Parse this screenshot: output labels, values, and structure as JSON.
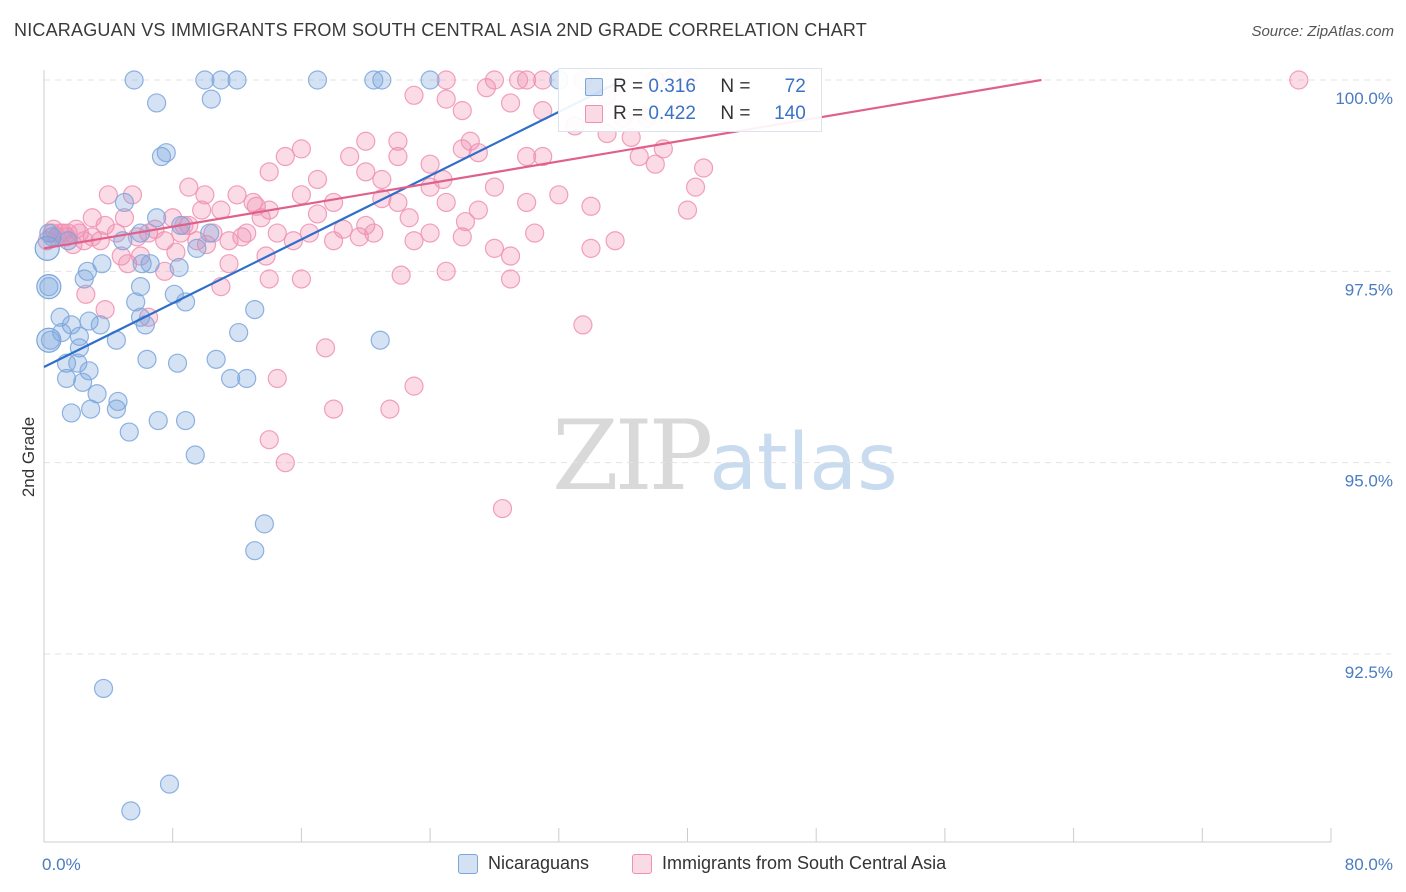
{
  "title": "NICARAGUAN VS IMMIGRANTS FROM SOUTH CENTRAL ASIA 2ND GRADE CORRELATION CHART",
  "source": "Source: ZipAtlas.com",
  "watermark": {
    "zip": "ZIP",
    "atlas": "atlas"
  },
  "stats": {
    "r_label": "R =",
    "n_label": "N =",
    "series1": {
      "r": "0.316",
      "n": "72",
      "color": "#7aa6dc"
    },
    "series2": {
      "r": "0.422",
      "n": "140",
      "color": "#f08fb0"
    }
  },
  "legend": {
    "series1": "Nicaraguans",
    "series2": "Immigrants from South Central Asia"
  },
  "chart_data": {
    "type": "scatter",
    "title": "NICARAGUAN VS IMMIGRANTS FROM SOUTH CENTRAL ASIA 2ND GRADE CORRELATION CHART",
    "xlabel": "",
    "ylabel": "2nd Grade",
    "xlim": [
      0,
      80
    ],
    "ylim": [
      89.8,
      100.7
    ],
    "x_tick_labels": [
      "0.0%",
      "80.0%"
    ],
    "y_ticks": [
      92.5,
      95.0,
      97.5,
      100.0
    ],
    "y_tick_labels": [
      "92.5%",
      "95.0%",
      "97.5%",
      "100.0%"
    ],
    "grid": true,
    "legend_position": "bottom",
    "series": [
      {
        "name": "Nicaraguans",
        "color": "#7aa6dc",
        "line_color": "#2f6fca",
        "trend": {
          "x": [
            0,
            36
          ],
          "y": [
            96.25,
            100.0
          ]
        },
        "points": [
          [
            5.6,
            100.0
          ],
          [
            10,
            100.0
          ],
          [
            11,
            100.0
          ],
          [
            12,
            100.0
          ],
          [
            17,
            100.0
          ],
          [
            21,
            100.0
          ],
          [
            24,
            100.0
          ],
          [
            32,
            100.0
          ],
          [
            7,
            99.7
          ],
          [
            10.4,
            99.75
          ],
          [
            7.3,
            99.0
          ],
          [
            7.6,
            99.05
          ],
          [
            5,
            98.4
          ],
          [
            7,
            98.2
          ],
          [
            8.5,
            98.1
          ],
          [
            6,
            98.0
          ],
          [
            4.9,
            97.9
          ],
          [
            9.5,
            97.8
          ],
          [
            10.3,
            98.0
          ],
          [
            0.3,
            98.0
          ],
          [
            1.5,
            97.9
          ],
          [
            0.5,
            97.95
          ],
          [
            2.7,
            97.5
          ],
          [
            3.6,
            97.6
          ],
          [
            6.1,
            97.6
          ],
          [
            6.6,
            97.6
          ],
          [
            8.4,
            97.55
          ],
          [
            0.3,
            97.3
          ],
          [
            2.5,
            97.4
          ],
          [
            6,
            97.3
          ],
          [
            8.1,
            97.2
          ],
          [
            5.7,
            97.1
          ],
          [
            8.8,
            97.1
          ],
          [
            13.1,
            97.0
          ],
          [
            1,
            96.9
          ],
          [
            2.8,
            96.85
          ],
          [
            6,
            96.9
          ],
          [
            1.7,
            96.8
          ],
          [
            3.5,
            96.8
          ],
          [
            6.3,
            96.8
          ],
          [
            12.1,
            96.7
          ],
          [
            1.1,
            96.7
          ],
          [
            2.2,
            96.65
          ],
          [
            4.5,
            96.6
          ],
          [
            2.2,
            96.5
          ],
          [
            20.9,
            96.6
          ],
          [
            0.4,
            96.6
          ],
          [
            1.4,
            96.3
          ],
          [
            2.1,
            96.3
          ],
          [
            6.4,
            96.35
          ],
          [
            8.3,
            96.3
          ],
          [
            10.7,
            96.35
          ],
          [
            2.8,
            96.2
          ],
          [
            1.4,
            96.1
          ],
          [
            2.4,
            96.05
          ],
          [
            11.6,
            96.1
          ],
          [
            12.6,
            96.1
          ],
          [
            3.3,
            95.9
          ],
          [
            4.6,
            95.8
          ],
          [
            2.9,
            95.7
          ],
          [
            4.5,
            95.7
          ],
          [
            1.7,
            95.65
          ],
          [
            7.1,
            95.55
          ],
          [
            8.8,
            95.55
          ],
          [
            5.3,
            95.4
          ],
          [
            9.4,
            95.1
          ],
          [
            13.7,
            94.2
          ],
          [
            13.1,
            93.85
          ],
          [
            3.7,
            92.05
          ],
          [
            7.8,
            90.8
          ],
          [
            5.4,
            90.45
          ],
          [
            20.5,
            100.0
          ]
        ]
      },
      {
        "name": "Immigrants from South Central Asia",
        "color": "#f08fb0",
        "line_color": "#e0608c",
        "trend": {
          "x": [
            0,
            62
          ],
          "y": [
            97.8,
            100.0
          ]
        },
        "points": [
          [
            25,
            100.0
          ],
          [
            28,
            100.0
          ],
          [
            29.5,
            100.0
          ],
          [
            30,
            100.0
          ],
          [
            31,
            100.0
          ],
          [
            33.5,
            100.0
          ],
          [
            38,
            100.0
          ],
          [
            39,
            100.0
          ],
          [
            40,
            100.0
          ],
          [
            78,
            100.0
          ],
          [
            27.5,
            99.9
          ],
          [
            23,
            99.8
          ],
          [
            25,
            99.75
          ],
          [
            29,
            99.7
          ],
          [
            26,
            99.6
          ],
          [
            31,
            99.6
          ],
          [
            36,
            99.5
          ],
          [
            39.5,
            99.6
          ],
          [
            33,
            99.4
          ],
          [
            35,
            99.3
          ],
          [
            20,
            99.2
          ],
          [
            22,
            99.2
          ],
          [
            26,
            99.1
          ],
          [
            16,
            99.1
          ],
          [
            27,
            99.05
          ],
          [
            15,
            99.0
          ],
          [
            19,
            99.0
          ],
          [
            22,
            99.0
          ],
          [
            24,
            98.9
          ],
          [
            30,
            99.0
          ],
          [
            37,
            99.0
          ],
          [
            38,
            98.9
          ],
          [
            41,
            98.85
          ],
          [
            14,
            98.8
          ],
          [
            17,
            98.7
          ],
          [
            21,
            98.7
          ],
          [
            24,
            98.6
          ],
          [
            28,
            98.6
          ],
          [
            9,
            98.6
          ],
          [
            10,
            98.5
          ],
          [
            12,
            98.5
          ],
          [
            4,
            98.5
          ],
          [
            5.5,
            98.5
          ],
          [
            16,
            98.5
          ],
          [
            13,
            98.4
          ],
          [
            18,
            98.4
          ],
          [
            22,
            98.4
          ],
          [
            25,
            98.4
          ],
          [
            30,
            98.4
          ],
          [
            34,
            98.35
          ],
          [
            3,
            98.2
          ],
          [
            5,
            98.2
          ],
          [
            8,
            98.2
          ],
          [
            11,
            98.3
          ],
          [
            14,
            98.3
          ],
          [
            17,
            98.25
          ],
          [
            40,
            98.3
          ],
          [
            0.5,
            98.0
          ],
          [
            1,
            98.0
          ],
          [
            1.5,
            98.0
          ],
          [
            2,
            98.05
          ],
          [
            0.8,
            97.95
          ],
          [
            1.2,
            98.0
          ],
          [
            2.5,
            97.9
          ],
          [
            3,
            97.95
          ],
          [
            3.5,
            97.9
          ],
          [
            4.5,
            98.0
          ],
          [
            5.8,
            97.95
          ],
          [
            6.5,
            98.0
          ],
          [
            7.5,
            97.9
          ],
          [
            8.5,
            98.0
          ],
          [
            9.5,
            97.9
          ],
          [
            11.5,
            97.9
          ],
          [
            12.3,
            97.95
          ],
          [
            14.5,
            98.0
          ],
          [
            16.5,
            98.0
          ],
          [
            18,
            97.9
          ],
          [
            20,
            98.1
          ],
          [
            24,
            98.0
          ],
          [
            23,
            97.9
          ],
          [
            26,
            97.95
          ],
          [
            28,
            97.8
          ],
          [
            29,
            97.7
          ],
          [
            20.5,
            98.0
          ],
          [
            9,
            98.1
          ],
          [
            10.5,
            98.0
          ],
          [
            4.8,
            97.7
          ],
          [
            5.2,
            97.6
          ],
          [
            7.5,
            97.5
          ],
          [
            11.5,
            97.6
          ],
          [
            13.8,
            97.7
          ],
          [
            2.6,
            97.2
          ],
          [
            3.8,
            97.0
          ],
          [
            6.5,
            96.9
          ],
          [
            11,
            97.3
          ],
          [
            14,
            97.4
          ],
          [
            16,
            97.4
          ],
          [
            25,
            97.5
          ],
          [
            29,
            97.4
          ],
          [
            33.5,
            96.8
          ],
          [
            17.5,
            96.5
          ],
          [
            14.5,
            96.1
          ],
          [
            23,
            96.0
          ],
          [
            18,
            95.7
          ],
          [
            21.5,
            95.7
          ],
          [
            14,
            95.3
          ],
          [
            15,
            95.0
          ],
          [
            28.5,
            94.4
          ],
          [
            35,
            99.8
          ],
          [
            26.5,
            99.2
          ],
          [
            36.5,
            99.25
          ],
          [
            20,
            98.8
          ],
          [
            31,
            99.0
          ],
          [
            27,
            98.3
          ],
          [
            12.6,
            98.0
          ],
          [
            6.9,
            98.05
          ],
          [
            2.2,
            98.0
          ],
          [
            1.8,
            97.85
          ],
          [
            0.6,
            98.05
          ],
          [
            1.4,
            97.95
          ],
          [
            0.2,
            97.9
          ],
          [
            3.8,
            98.1
          ],
          [
            19.6,
            97.95
          ],
          [
            22.2,
            97.45
          ],
          [
            15.5,
            97.9
          ],
          [
            10.1,
            97.85
          ],
          [
            8.2,
            97.75
          ],
          [
            6,
            97.7
          ],
          [
            18.6,
            98.05
          ],
          [
            13.5,
            98.2
          ],
          [
            35.5,
            97.9
          ],
          [
            38.5,
            99.1
          ],
          [
            40.5,
            98.6
          ],
          [
            21,
            98.45
          ],
          [
            9.8,
            98.3
          ],
          [
            24.8,
            98.7
          ],
          [
            32,
            98.5
          ],
          [
            37.5,
            99.5
          ],
          [
            30.5,
            98.0
          ],
          [
            34,
            97.8
          ],
          [
            26.2,
            98.15
          ],
          [
            22.7,
            98.2
          ],
          [
            8.7,
            98.1
          ],
          [
            13.2,
            98.35
          ]
        ]
      }
    ]
  }
}
